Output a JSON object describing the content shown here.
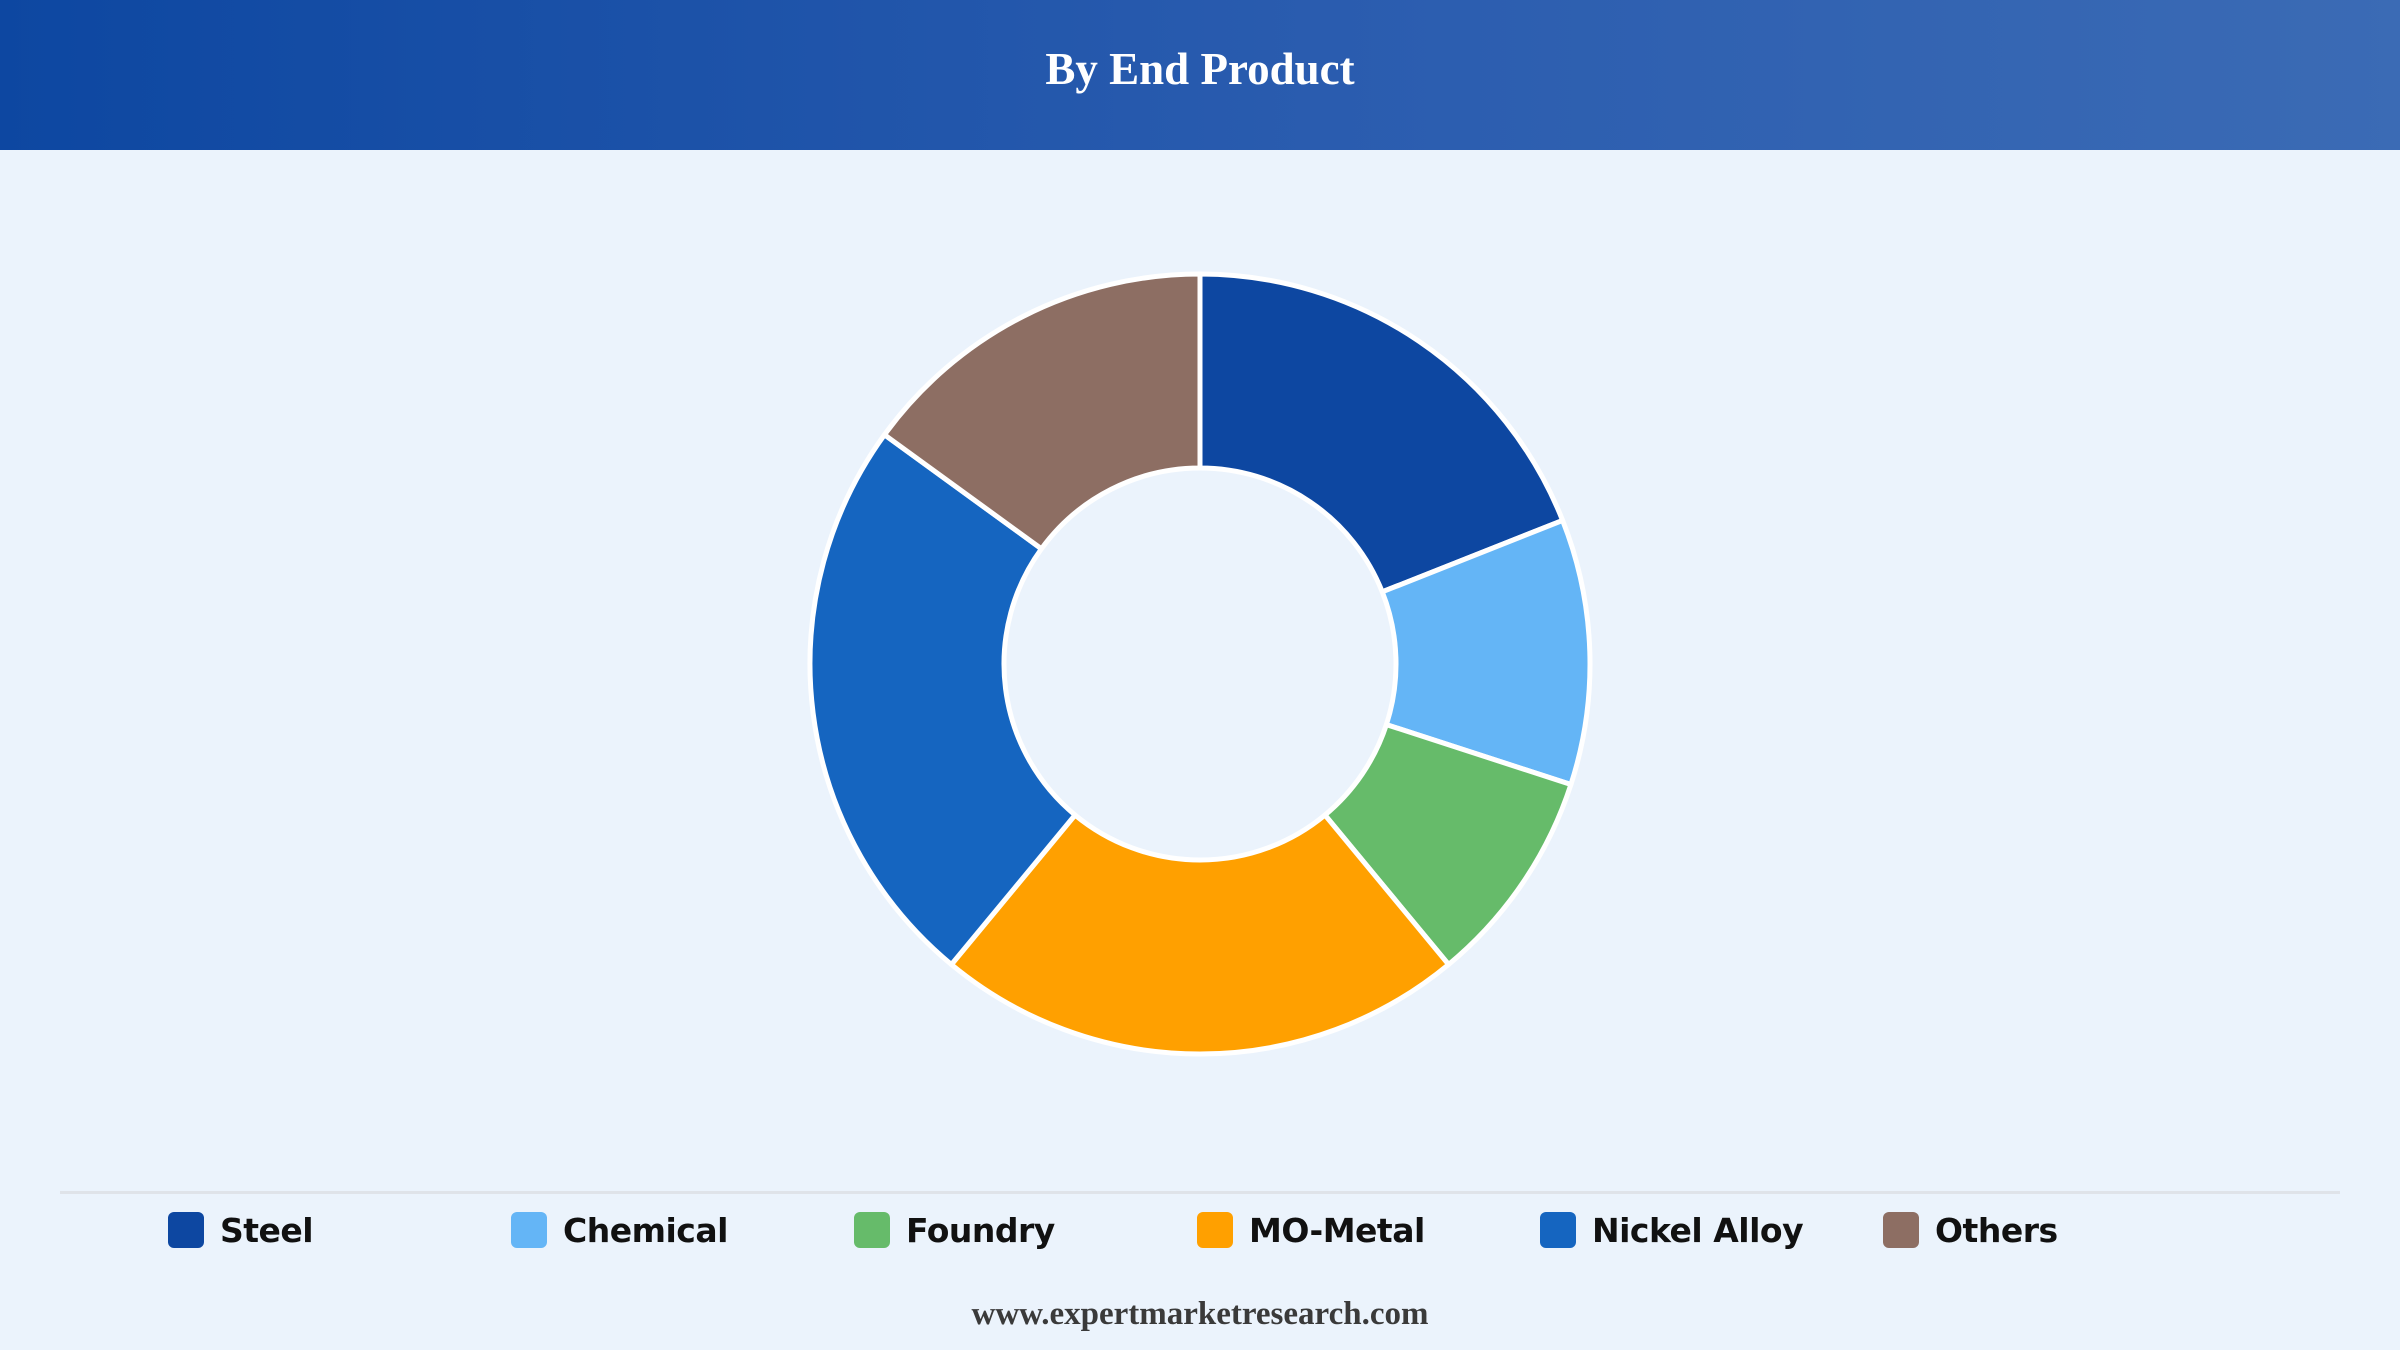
{
  "header": {
    "title": "By End Product"
  },
  "chart_data": {
    "type": "pie",
    "donut": true,
    "title": "By End Product",
    "categories": [
      "Steel",
      "Chemical",
      "Foundry",
      "MO-Metal",
      "Nickel Alloy",
      "Others"
    ],
    "values": [
      19,
      11,
      9,
      22,
      24,
      15
    ],
    "colors": [
      "#0d47a1",
      "#64b5f6",
      "#66bb6a",
      "#ffa000",
      "#1565c0",
      "#8d6e63"
    ],
    "legend_position": "bottom",
    "start_angle": "top, clockwise"
  },
  "legend": {
    "items": [
      {
        "label": "Steel",
        "color": "#0d47a1"
      },
      {
        "label": "Chemical",
        "color": "#64b5f6"
      },
      {
        "label": "Foundry",
        "color": "#66bb6a"
      },
      {
        "label": "MO-Metal",
        "color": "#ffa000"
      },
      {
        "label": "Nickel Alloy",
        "color": "#1565c0"
      },
      {
        "label": "Others",
        "color": "#8d6e63"
      }
    ]
  },
  "footer": {
    "website": "www.expertmarketresearch.com"
  }
}
